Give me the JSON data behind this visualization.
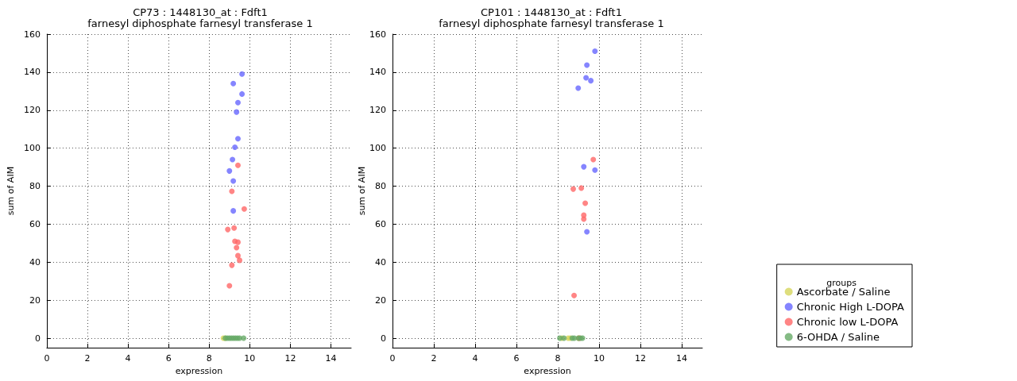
{
  "chart_data": [
    {
      "type": "scatter",
      "title": "CP73 : 1448130_at : Fdft1",
      "subtitle": "farnesyl diphosphate farnesyl transferase 1",
      "xlabel": "expression",
      "ylabel": "sum of AIM",
      "xlim": [
        0,
        15
      ],
      "xticks": [
        0,
        2,
        4,
        6,
        8,
        10,
        12,
        14
      ],
      "ylim": [
        -5,
        160
      ],
      "yticks": [
        0,
        20,
        40,
        60,
        80,
        100,
        120,
        140,
        160
      ],
      "grid": true,
      "marker": "circle",
      "legend": false,
      "series": [
        {
          "color": "#d6d65c",
          "x": [
            8.7,
            8.8
          ],
          "values": [
            0,
            0
          ]
        },
        {
          "color": "#6666ff",
          "x": [
            9.62,
            9.19,
            9.62,
            9.42,
            9.35,
            9.42,
            9.27,
            9.15,
            9.0,
            9.19,
            9.19
          ],
          "values": [
            139,
            134,
            128.5,
            124,
            119,
            105,
            100.5,
            94,
            88,
            82.7,
            67
          ]
        },
        {
          "color": "#ff6666",
          "x": [
            9.42,
            9.12,
            9.73,
            8.92,
            9.23,
            9.27,
            9.42,
            9.35,
            9.42,
            9.5,
            9.12,
            9.0
          ],
          "values": [
            91,
            77.3,
            68,
            57.2,
            58,
            51,
            50.5,
            47.6,
            43.4,
            41,
            38.4,
            27.6
          ]
        },
        {
          "color": "#66aa66",
          "x": [
            8.8,
            8.9,
            9.0,
            9.1,
            9.2,
            9.3,
            9.4,
            9.5,
            9.7
          ],
          "values": [
            0,
            0,
            0,
            0,
            0,
            0,
            0,
            0,
            0
          ]
        }
      ]
    },
    {
      "type": "scatter",
      "title": "CP101 : 1448130_at : Fdft1",
      "subtitle": "farnesyl diphosphate farnesyl transferase 1",
      "xlabel": "expression",
      "ylabel": "sum of AIM",
      "xlim": [
        0,
        15
      ],
      "xticks": [
        0,
        2,
        4,
        6,
        8,
        10,
        12,
        14
      ],
      "ylim": [
        -5,
        160
      ],
      "yticks": [
        0,
        20,
        40,
        60,
        80,
        100,
        120,
        140,
        160
      ],
      "grid": true,
      "marker": "circle",
      "legend": "right",
      "legend_title": "groups",
      "series": [
        {
          "name": "Ascorbate / Saline",
          "color": "#d6d65c",
          "x": [
            8.2,
            8.5,
            8.6,
            9.0
          ],
          "values": [
            0,
            0,
            0,
            0
          ]
        },
        {
          "name": "Chronic High L-DOPA",
          "color": "#6666ff",
          "x": [
            9.8,
            9.41,
            9.37,
            9.6,
            8.99,
            9.26,
            9.8,
            9.41
          ],
          "values": [
            151,
            143.7,
            137,
            135.5,
            131.6,
            90.2,
            88.5,
            56
          ]
        },
        {
          "name": "Chronic low L-DOPA",
          "color": "#ff6666",
          "x": [
            9.72,
            8.75,
            9.14,
            9.33,
            9.26,
            9.26,
            8.79,
            9.05
          ],
          "values": [
            94,
            78.5,
            79,
            71,
            64.7,
            62.7,
            22.5,
            0
          ]
        },
        {
          "name": "6-OHDA / Saline",
          "color": "#66aa66",
          "x": [
            8.1,
            8.3,
            8.7,
            8.8,
            9.0,
            9.1,
            9.2
          ],
          "values": [
            0,
            0,
            0,
            0,
            0,
            0,
            0
          ]
        }
      ]
    }
  ]
}
